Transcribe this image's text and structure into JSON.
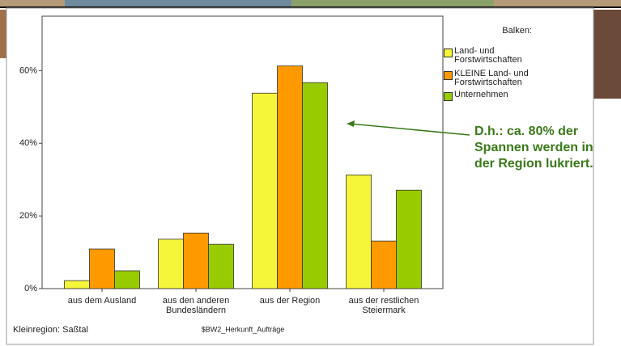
{
  "chart_data": {
    "type": "bar",
    "categories": [
      "aus dem Ausland",
      "aus den anderen Bundesländern",
      "aus der Region",
      "aus der restlichen Steiermark"
    ],
    "series": [
      {
        "name": "Land- und Forstwirtschaften",
        "color": "#f5f53a",
        "values": [
          2.2,
          13.6,
          53.8,
          31.3
        ]
      },
      {
        "name": "KLEINE Land- und Forstwirtschaften",
        "color": "#ff9900",
        "values": [
          10.9,
          15.3,
          61.3,
          13.1
        ]
      },
      {
        "name": "Unternehmen",
        "color": "#99cc00",
        "values": [
          4.9,
          12.2,
          56.7,
          27.1
        ]
      }
    ],
    "ylim": [
      0,
      75
    ],
    "yticks": [
      {
        "value": 0,
        "label": "0%"
      },
      {
        "value": 20,
        "label": "20%"
      },
      {
        "value": 40,
        "label": "40%"
      },
      {
        "value": 60,
        "label": "60%"
      }
    ],
    "legend_title": "Balken:",
    "annotation": "D.h.: ca. 80% der Spannen werden in der Region lukriert.",
    "footer_left": "Kleinregion: Saßtal",
    "x_label": "$BW2_Herkunft_Aufträge"
  }
}
